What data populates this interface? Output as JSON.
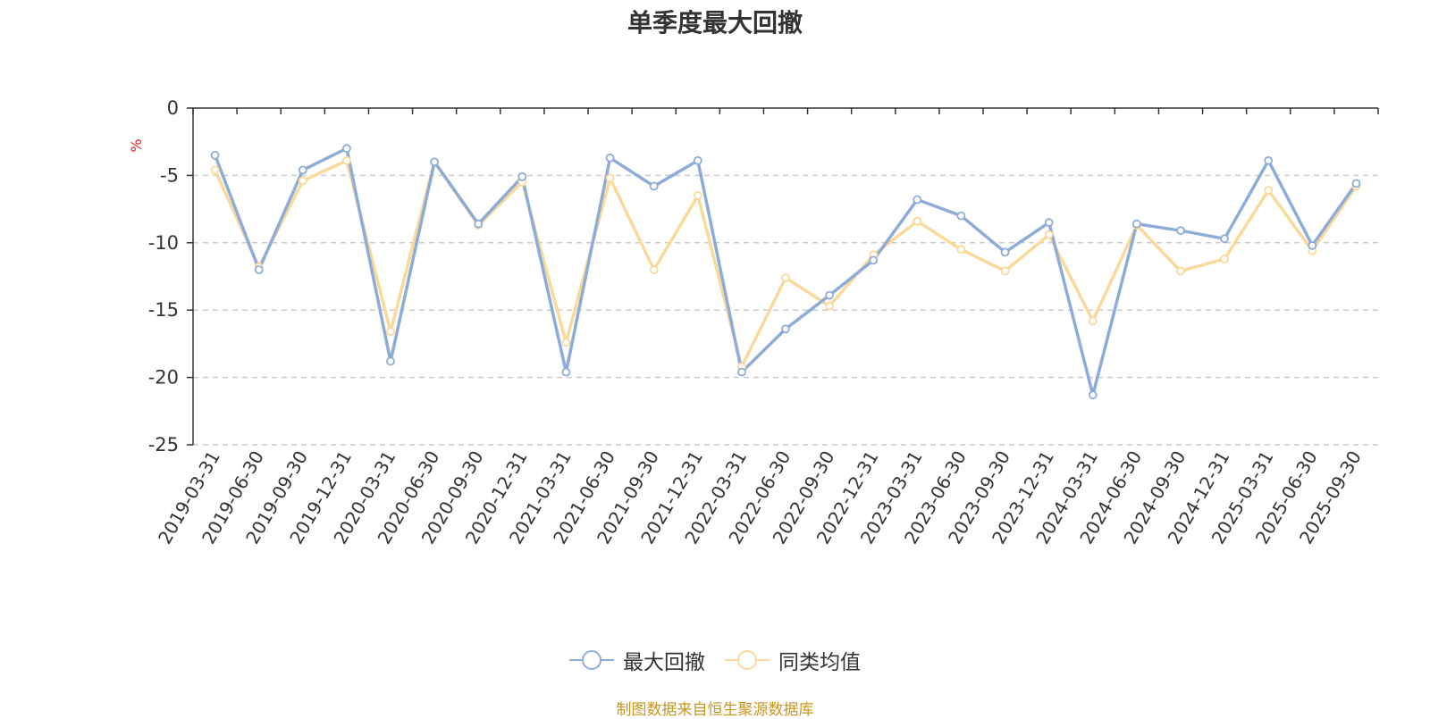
{
  "chart_data": {
    "type": "line",
    "title": "单季度最大回撤",
    "ylabel": "%",
    "ylim": [
      -25,
      0
    ],
    "yticks": [
      0,
      -5,
      -10,
      -15,
      -20,
      -25
    ],
    "grid": true,
    "legend_position": "bottom",
    "categories": [
      "2019-03-31",
      "2019-06-30",
      "2019-09-30",
      "2019-12-31",
      "2020-03-31",
      "2020-06-30",
      "2020-09-30",
      "2020-12-31",
      "2021-03-31",
      "2021-06-30",
      "2021-09-30",
      "2021-12-31",
      "2022-03-31",
      "2022-06-30",
      "2022-09-30",
      "2022-12-31",
      "2023-03-31",
      "2023-06-30",
      "2023-09-30",
      "2023-12-31",
      "2024-03-31",
      "2024-06-30",
      "2024-09-30",
      "2024-12-31",
      "2025-03-31",
      "2025-06-30",
      "2025-09-30"
    ],
    "series": [
      {
        "name": "最大回撤",
        "color": "#8eacd8",
        "values": [
          -3.5,
          -12.0,
          -4.6,
          -3.0,
          -18.8,
          -4.0,
          -8.6,
          -5.1,
          -19.6,
          -3.7,
          -5.8,
          -3.9,
          -19.6,
          -16.4,
          -13.9,
          -11.3,
          -6.8,
          -8.0,
          -10.7,
          -8.5,
          -21.3,
          -8.6,
          -9.1,
          -9.7,
          -3.9,
          -10.2,
          -5.6
        ]
      },
      {
        "name": "同类均值",
        "color": "#fbd99a",
        "values": [
          -4.6,
          -11.8,
          -5.4,
          -3.9,
          -16.6,
          -4.0,
          -8.7,
          -5.5,
          -17.4,
          -5.2,
          -12.0,
          -6.5,
          -19.2,
          -12.6,
          -14.7,
          -10.9,
          -8.4,
          -10.5,
          -12.1,
          -9.4,
          -15.8,
          -8.7,
          -12.1,
          -11.2,
          -6.1,
          -10.6,
          -5.8
        ]
      }
    ]
  },
  "legend": {
    "items": [
      {
        "label": "最大回撤",
        "color": "#8eacd8"
      },
      {
        "label": "同类均值",
        "color": "#fbd99a"
      }
    ]
  },
  "source": "制图数据来自恒生聚源数据库"
}
